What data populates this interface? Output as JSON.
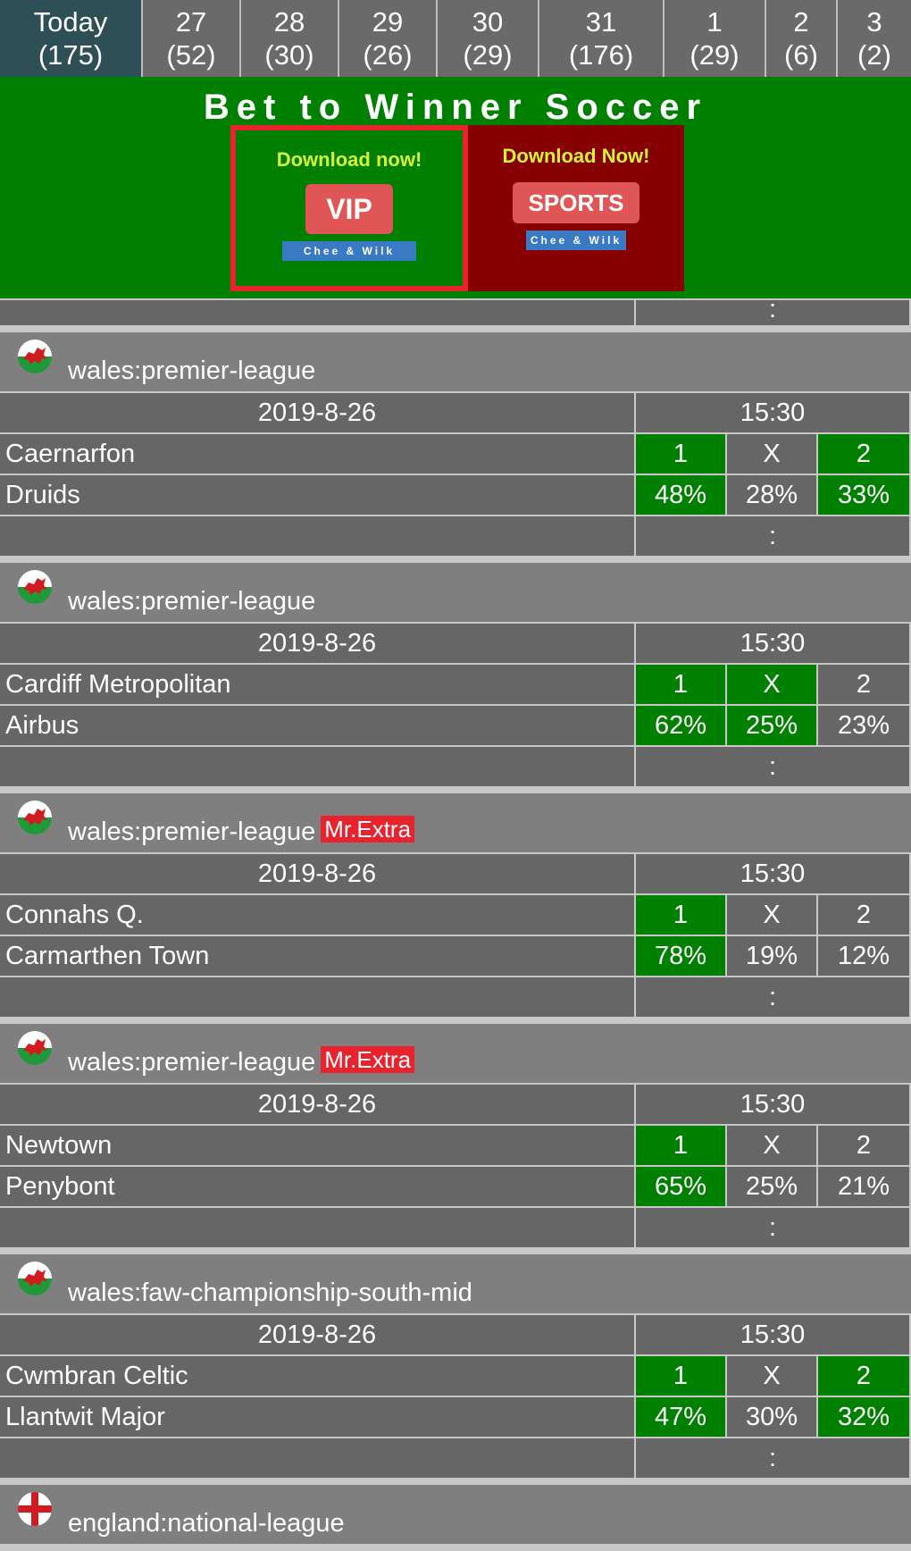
{
  "tabs": [
    {
      "day": "Today",
      "count": "(175)",
      "active": true
    },
    {
      "day": "27",
      "count": "(52)"
    },
    {
      "day": "28",
      "count": "(30)"
    },
    {
      "day": "29",
      "count": "(26)"
    },
    {
      "day": "30",
      "count": "(29)"
    },
    {
      "day": "31",
      "count": "(176)"
    },
    {
      "day": "1",
      "count": "(29)"
    },
    {
      "day": "2",
      "count": "(6)"
    },
    {
      "day": "3",
      "count": "(2)"
    }
  ],
  "banner": {
    "title": "Bet to Winner Soccer",
    "vip": {
      "headline": "Download now!",
      "button": "VIP",
      "sub": "Chee & Wilk"
    },
    "sports": {
      "headline": "Download Now!",
      "button": "SPORTS",
      "sub": "Chee & Wilk"
    }
  },
  "top_partial": {
    "score": ":"
  },
  "matches": [
    {
      "league": "wales:premier-league",
      "flag": "wales",
      "badge": "",
      "date": "2019-8-26",
      "time": "15:30",
      "home": "Caernarfon",
      "away": "Druids",
      "labels": [
        "1",
        "X",
        "2"
      ],
      "pct": [
        "48%",
        "28%",
        "33%"
      ],
      "hl": [
        true,
        false,
        true
      ],
      "score": ":"
    },
    {
      "league": "wales:premier-league",
      "flag": "wales",
      "badge": "",
      "date": "2019-8-26",
      "time": "15:30",
      "home": "Cardiff Metropolitan",
      "away": "Airbus",
      "labels": [
        "1",
        "X",
        "2"
      ],
      "pct": [
        "62%",
        "25%",
        "23%"
      ],
      "hl": [
        true,
        true,
        false
      ],
      "score": ":"
    },
    {
      "league": "wales:premier-league",
      "flag": "wales",
      "badge": "Mr.Extra",
      "date": "2019-8-26",
      "time": "15:30",
      "home": "Connahs Q.",
      "away": "Carmarthen Town",
      "labels": [
        "1",
        "X",
        "2"
      ],
      "pct": [
        "78%",
        "19%",
        "12%"
      ],
      "hl": [
        true,
        false,
        false
      ],
      "score": ":"
    },
    {
      "league": "wales:premier-league",
      "flag": "wales",
      "badge": "Mr.Extra",
      "date": "2019-8-26",
      "time": "15:30",
      "home": "Newtown",
      "away": "Penybont",
      "labels": [
        "1",
        "X",
        "2"
      ],
      "pct": [
        "65%",
        "25%",
        "21%"
      ],
      "hl": [
        true,
        false,
        false
      ],
      "score": ":"
    },
    {
      "league": "wales:faw-championship-south-mid",
      "flag": "wales",
      "badge": "",
      "date": "2019-8-26",
      "time": "15:30",
      "home": "Cwmbran Celtic",
      "away": "Llantwit Major",
      "labels": [
        "1",
        "X",
        "2"
      ],
      "pct": [
        "47%",
        "30%",
        "32%"
      ],
      "hl": [
        true,
        false,
        true
      ],
      "score": ":"
    }
  ],
  "last_league": {
    "league": "england:national-league",
    "flag": "england"
  }
}
